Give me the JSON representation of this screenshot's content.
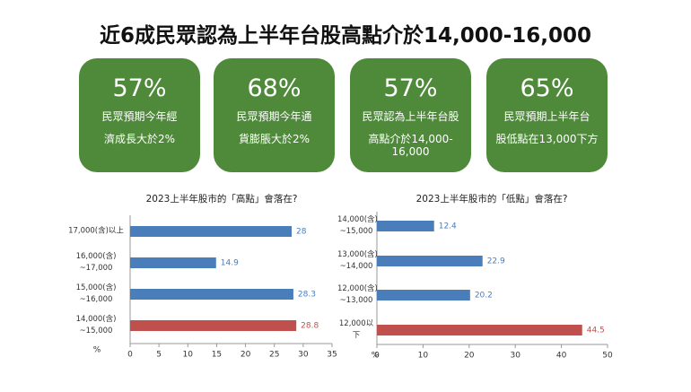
{
  "title": "近6成民眾認為上半年台股高點介於14,000-16,000",
  "cards": [
    {
      "value": "57%",
      "lines": [
        "民眾預期今年經",
        "濟成長大於2%"
      ]
    },
    {
      "value": "68%",
      "lines": [
        "民眾預期今年通",
        "貨膨脹大於2%"
      ]
    },
    {
      "value": "57%",
      "lines": [
        "民眾認為上半年台股",
        "高點介於14,000-16,000"
      ]
    },
    {
      "value": "65%",
      "lines": [
        "民眾預期上半年台",
        "股低點在13,000下方"
      ]
    }
  ],
  "chart_data": [
    {
      "type": "bar",
      "orientation": "horizontal",
      "title": "2023上半年股市的「高點」會落在?",
      "categories": [
        "17,000(含)以上",
        "16,000(含)\n~17,000",
        "15,000(含)\n~16,000",
        "14,000(含)\n~15,000"
      ],
      "values": [
        28,
        14.9,
        28.3,
        28.8
      ],
      "colors": [
        "#4a7ebb",
        "#4a7ebb",
        "#4a7ebb",
        "#c0504d"
      ],
      "xlim": [
        0,
        35
      ],
      "xticks": [
        0,
        5,
        10,
        15,
        20,
        25,
        30,
        35
      ],
      "axis_label": "%"
    },
    {
      "type": "bar",
      "orientation": "horizontal",
      "title": "2023上半年股市的「低點」會落在?",
      "categories": [
        "14,000(含)\n~15,000",
        "13,000(含)\n~14,000",
        "12,000(含)\n~13,000",
        "12,000以下"
      ],
      "values": [
        12.4,
        22.9,
        20.2,
        44.5
      ],
      "colors": [
        "#4a7ebb",
        "#4a7ebb",
        "#4a7ebb",
        "#c0504d"
      ],
      "xlim": [
        0,
        50
      ],
      "xticks": [
        0,
        10,
        20,
        30,
        40,
        50
      ],
      "axis_label": "%"
    }
  ]
}
